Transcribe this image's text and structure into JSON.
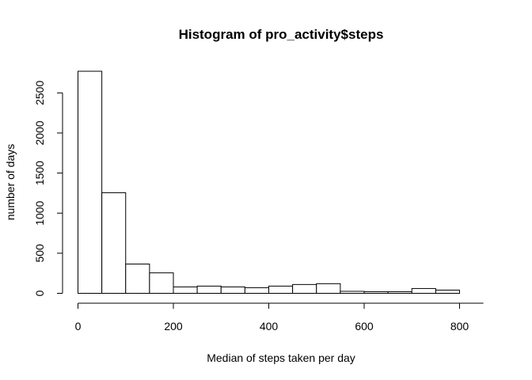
{
  "chart_data": {
    "type": "bar",
    "title": "Histogram of pro_activity$steps",
    "xlabel": "Median of steps taken per day",
    "ylabel": "number of days",
    "bin_edges": [
      0,
      50,
      100,
      150,
      200,
      250,
      300,
      350,
      400,
      450,
      500,
      550,
      600,
      650,
      700,
      750,
      800
    ],
    "values": [
      2770,
      1255,
      365,
      255,
      80,
      90,
      80,
      70,
      90,
      110,
      120,
      25,
      20,
      20,
      60,
      40
    ],
    "xlim": [
      0,
      850
    ],
    "ylim": [
      0,
      2770
    ],
    "x_ticks": [
      0,
      200,
      400,
      600,
      800
    ],
    "x_tick_labels": [
      "0",
      "200",
      "400",
      "600",
      "800"
    ],
    "y_ticks": [
      0,
      500,
      1000,
      1500,
      2000,
      2500
    ],
    "y_tick_labels": [
      "0",
      "500",
      "1000",
      "1500",
      "2000",
      "2500"
    ],
    "grid": false,
    "legend": "none"
  }
}
